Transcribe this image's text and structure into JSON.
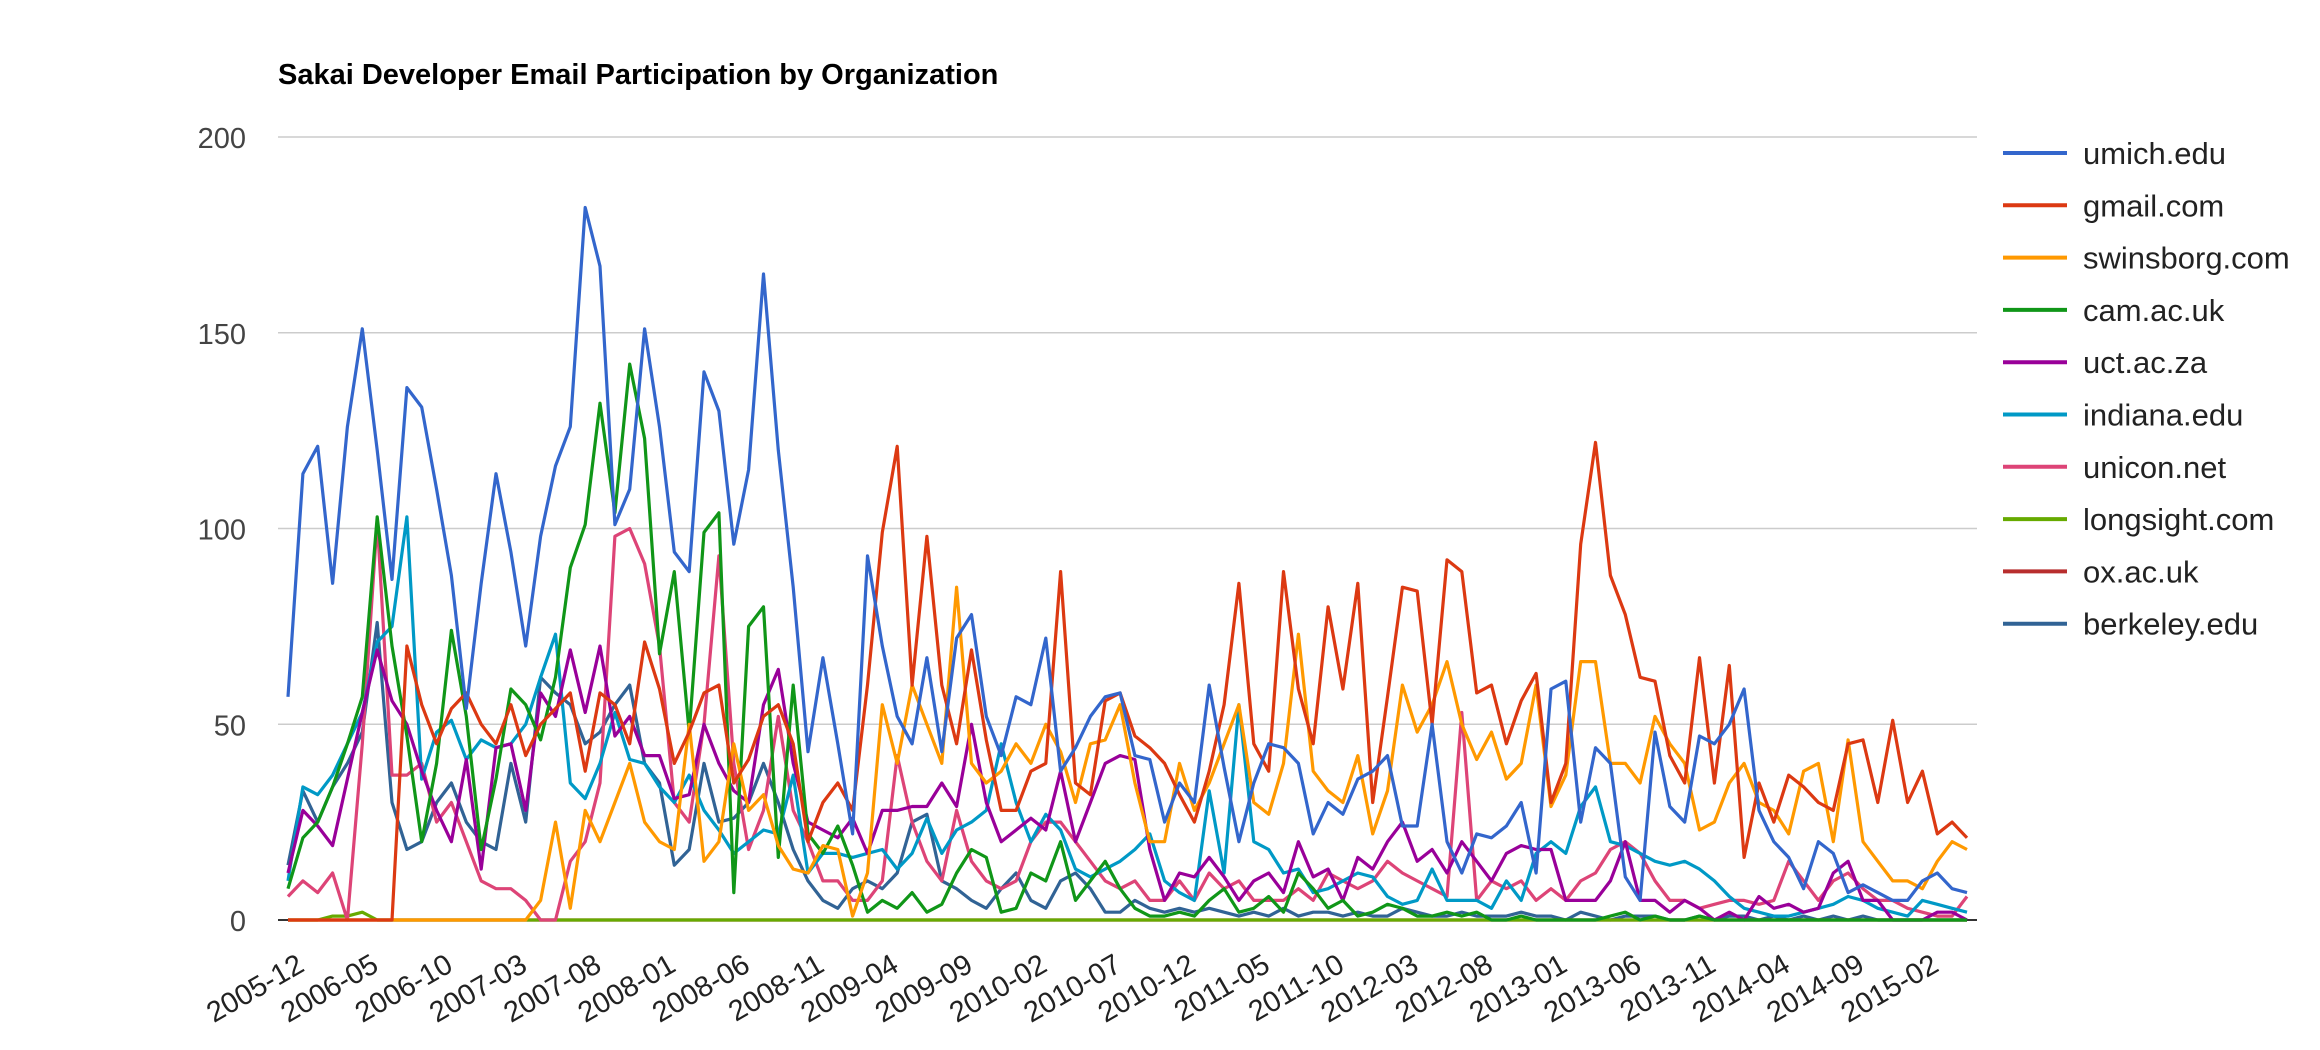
{
  "chart_data": {
    "type": "line",
    "title": "Sakai Developer Email Participation by Organization",
    "xlabel": "",
    "ylabel": "",
    "ylim": [
      0,
      200
    ],
    "yticks": [
      0,
      50,
      100,
      150,
      200
    ],
    "grid": true,
    "legend_position": "right",
    "x_tick_labels": [
      "2005-12",
      "2006-05",
      "2006-10",
      "2007-03",
      "2007-08",
      "2008-01",
      "2008-06",
      "2008-11",
      "2009-04",
      "2009-09",
      "2010-02",
      "2010-07",
      "2010-12",
      "2011-05",
      "2011-10",
      "2012-03",
      "2012-08",
      "2013-01",
      "2013-06",
      "2013-11",
      "2014-04",
      "2014-09",
      "2015-02"
    ],
    "x": [
      "2005-12",
      "2006-01",
      "2006-02",
      "2006-03",
      "2006-04",
      "2006-05",
      "2006-06",
      "2006-07",
      "2006-08",
      "2006-09",
      "2006-10",
      "2006-11",
      "2006-12",
      "2007-01",
      "2007-02",
      "2007-03",
      "2007-04",
      "2007-05",
      "2007-06",
      "2007-07",
      "2007-08",
      "2007-09",
      "2007-10",
      "2007-11",
      "2007-12",
      "2008-01",
      "2008-02",
      "2008-03",
      "2008-04",
      "2008-05",
      "2008-06",
      "2008-07",
      "2008-08",
      "2008-09",
      "2008-10",
      "2008-11",
      "2008-12",
      "2009-01",
      "2009-02",
      "2009-03",
      "2009-04",
      "2009-05",
      "2009-06",
      "2009-07",
      "2009-08",
      "2009-09",
      "2009-10",
      "2009-11",
      "2009-12",
      "2010-01",
      "2010-02",
      "2010-03",
      "2010-04",
      "2010-05",
      "2010-06",
      "2010-07",
      "2010-08",
      "2010-09",
      "2010-10",
      "2010-11",
      "2010-12",
      "2011-01",
      "2011-02",
      "2011-03",
      "2011-04",
      "2011-05",
      "2011-06",
      "2011-07",
      "2011-08",
      "2011-09",
      "2011-10",
      "2011-11",
      "2011-12",
      "2012-01",
      "2012-02",
      "2012-03",
      "2012-04",
      "2012-05",
      "2012-06",
      "2012-07",
      "2012-08",
      "2012-09",
      "2012-10",
      "2012-11",
      "2012-12",
      "2013-01",
      "2013-02",
      "2013-03",
      "2013-04",
      "2013-05",
      "2013-06",
      "2013-07",
      "2013-08",
      "2013-09",
      "2013-10",
      "2013-11",
      "2013-12",
      "2014-01",
      "2014-02",
      "2014-03",
      "2014-04",
      "2014-05",
      "2014-06",
      "2014-07",
      "2014-08",
      "2014-09",
      "2014-10",
      "2014-11",
      "2014-12",
      "2015-01",
      "2015-02",
      "2015-03",
      "2015-04",
      "2015-05"
    ],
    "series": [
      {
        "name": "umich.edu",
        "color": "#3366cc",
        "values": [
          57,
          114,
          121,
          86,
          126,
          151,
          120,
          87,
          136,
          131,
          110,
          88,
          54,
          86,
          114,
          94,
          70,
          98,
          116,
          126,
          182,
          167,
          101,
          110,
          151,
          126,
          94,
          89,
          140,
          130,
          96,
          115,
          165,
          120,
          85,
          43,
          67,
          45,
          22,
          93,
          70,
          52,
          45,
          67,
          43,
          72,
          78,
          52,
          42,
          57,
          55,
          72,
          38,
          44,
          52,
          57,
          58,
          42,
          41,
          25,
          35,
          30,
          60,
          39,
          20,
          35,
          45,
          44,
          40,
          22,
          30,
          27,
          36,
          38,
          42,
          24,
          24,
          50,
          20,
          12,
          22,
          21,
          24,
          30,
          12,
          59,
          61,
          25,
          44,
          40,
          11,
          5,
          48,
          29,
          25,
          47,
          45,
          50,
          59,
          28,
          20,
          16,
          8,
          20,
          17,
          7,
          9,
          7,
          5,
          5,
          10,
          12,
          8,
          7
        ]
      },
      {
        "name": "gmail.com",
        "color": "#dc3912",
        "values": [
          0,
          0,
          0,
          0,
          0,
          0,
          0,
          0,
          70,
          55,
          45,
          54,
          58,
          50,
          45,
          55,
          42,
          50,
          54,
          58,
          38,
          58,
          55,
          45,
          71,
          59,
          40,
          48,
          58,
          60,
          35,
          41,
          52,
          55,
          45,
          20,
          30,
          35,
          28,
          60,
          99,
          121,
          60,
          98,
          60,
          45,
          69,
          46,
          28,
          28,
          38,
          40,
          89,
          35,
          32,
          56,
          58,
          47,
          44,
          40,
          32,
          25,
          38,
          55,
          86,
          45,
          38,
          89,
          59,
          45,
          80,
          59,
          86,
          30,
          57,
          85,
          84,
          50,
          92,
          89,
          58,
          60,
          45,
          56,
          63,
          30,
          40,
          96,
          122,
          88,
          78,
          62,
          61,
          42,
          35,
          67,
          35,
          65,
          16,
          35,
          25,
          37,
          34,
          30,
          28,
          45,
          46,
          30,
          51,
          30,
          38,
          22,
          25,
          21
        ]
      },
      {
        "name": "swinsborg.com",
        "color": "#ff9900",
        "values": [
          0,
          0,
          0,
          0,
          0,
          0,
          0,
          0,
          0,
          0,
          0,
          0,
          0,
          0,
          0,
          0,
          0,
          5,
          25,
          3,
          28,
          20,
          30,
          40,
          25,
          20,
          18,
          50,
          15,
          20,
          45,
          28,
          32,
          19,
          13,
          12,
          19,
          18,
          1,
          12,
          55,
          40,
          60,
          50,
          40,
          85,
          40,
          35,
          38,
          45,
          40,
          50,
          43,
          30,
          45,
          46,
          55,
          35,
          20,
          20,
          40,
          28,
          35,
          45,
          55,
          30,
          27,
          40,
          73,
          38,
          33,
          30,
          42,
          22,
          33,
          60,
          48,
          55,
          66,
          50,
          41,
          48,
          36,
          40,
          60,
          29,
          37,
          66,
          66,
          40,
          40,
          35,
          52,
          45,
          40,
          23,
          25,
          35,
          40,
          30,
          28,
          22,
          38,
          40,
          20,
          46,
          20,
          15,
          10,
          10,
          8,
          15,
          20,
          18
        ]
      },
      {
        "name": "cam.ac.uk",
        "color": "#109618",
        "values": [
          8,
          21,
          25,
          34,
          45,
          57,
          103,
          70,
          47,
          20,
          40,
          74,
          52,
          18,
          36,
          59,
          55,
          46,
          62,
          90,
          101,
          132,
          104,
          142,
          123,
          68,
          89,
          48,
          99,
          104,
          7,
          75,
          80,
          16,
          60,
          22,
          17,
          24,
          14,
          2,
          5,
          3,
          7,
          2,
          4,
          12,
          18,
          16,
          2,
          3,
          12,
          10,
          20,
          5,
          10,
          15,
          8,
          3,
          1,
          1,
          2,
          1,
          5,
          8,
          2,
          3,
          6,
          2,
          12,
          8,
          3,
          5,
          1,
          2,
          4,
          3,
          1,
          1,
          2,
          1,
          2,
          0,
          0,
          1,
          0,
          0,
          0,
          0,
          0,
          1,
          2,
          0,
          1,
          0,
          0,
          1,
          0,
          0,
          0,
          0,
          0,
          0,
          0,
          0,
          0,
          0,
          0,
          0,
          0,
          0,
          0,
          0,
          0,
          0
        ]
      },
      {
        "name": "uct.ac.za",
        "color": "#990099",
        "values": [
          12,
          28,
          24,
          19,
          36,
          53,
          69,
          56,
          50,
          38,
          28,
          20,
          41,
          13,
          44,
          45,
          28,
          58,
          52,
          69,
          53,
          70,
          47,
          52,
          42,
          42,
          31,
          32,
          50,
          40,
          33,
          30,
          55,
          64,
          40,
          25,
          23,
          21,
          26,
          17,
          28,
          28,
          29,
          29,
          35,
          29,
          50,
          30,
          20,
          23,
          26,
          23,
          38,
          20,
          30,
          40,
          42,
          41,
          18,
          5,
          12,
          11,
          16,
          11,
          5,
          10,
          12,
          7,
          20,
          11,
          13,
          5,
          16,
          13,
          20,
          25,
          15,
          18,
          12,
          20,
          15,
          10,
          17,
          19,
          18,
          18,
          5,
          5,
          5,
          10,
          20,
          5,
          5,
          2,
          5,
          3,
          0,
          2,
          0,
          6,
          3,
          4,
          2,
          3,
          12,
          15,
          5,
          5,
          0,
          0,
          0,
          2,
          2,
          0
        ]
      },
      {
        "name": "indiana.edu",
        "color": "#0099c6",
        "values": [
          10,
          34,
          32,
          37,
          45,
          53,
          71,
          75,
          103,
          36,
          48,
          51,
          41,
          46,
          44,
          45,
          50,
          62,
          73,
          35,
          31,
          40,
          53,
          41,
          40,
          34,
          30,
          37,
          28,
          23,
          17,
          20,
          23,
          22,
          37,
          12,
          17,
          17,
          16,
          17,
          18,
          13,
          17,
          26,
          17,
          23,
          25,
          28,
          45,
          30,
          20,
          27,
          23,
          13,
          11,
          13,
          15,
          18,
          22,
          10,
          7,
          5,
          33,
          12,
          55,
          20,
          18,
          12,
          13,
          7,
          8,
          10,
          12,
          11,
          6,
          4,
          5,
          13,
          5,
          5,
          5,
          3,
          10,
          5,
          17,
          20,
          17,
          29,
          34,
          20,
          19,
          17,
          15,
          14,
          15,
          13,
          10,
          6,
          3,
          2,
          1,
          1,
          2,
          3,
          4,
          6,
          5,
          3,
          2,
          1,
          5,
          4,
          3,
          2
        ]
      },
      {
        "name": "unicon.net",
        "color": "#dd4477",
        "values": [
          6,
          10,
          7,
          12,
          0,
          45,
          102,
          37,
          37,
          40,
          25,
          30,
          20,
          10,
          8,
          8,
          5,
          0,
          0,
          15,
          20,
          35,
          98,
          100,
          91,
          70,
          30,
          25,
          50,
          93,
          40,
          18,
          28,
          52,
          28,
          20,
          10,
          10,
          5,
          5,
          10,
          42,
          25,
          15,
          10,
          28,
          15,
          10,
          8,
          10,
          20,
          25,
          25,
          20,
          15,
          10,
          8,
          10,
          5,
          5,
          10,
          5,
          12,
          8,
          10,
          5,
          5,
          5,
          8,
          5,
          12,
          10,
          8,
          10,
          15,
          12,
          10,
          8,
          6,
          53,
          5,
          10,
          8,
          10,
          5,
          8,
          5,
          10,
          12,
          18,
          20,
          17,
          10,
          5,
          5,
          3,
          4,
          5,
          5,
          4,
          5,
          15,
          10,
          5,
          10,
          12,
          8,
          5,
          5,
          3,
          2,
          1,
          1,
          6
        ]
      },
      {
        "name": "longsight.com",
        "color": "#66aa00",
        "values": [
          0,
          0,
          0,
          1,
          1,
          2,
          0,
          0,
          0,
          0,
          0,
          0,
          0,
          0,
          0,
          0,
          0,
          0,
          0,
          0,
          0,
          0,
          0,
          0,
          0,
          0,
          0,
          0,
          0,
          0,
          0,
          0,
          0,
          0,
          0,
          0,
          0,
          0,
          0,
          0,
          0,
          0,
          0,
          0,
          0,
          0,
          0,
          0,
          0,
          0,
          0,
          0,
          0,
          0,
          0,
          0,
          0,
          0,
          0,
          0,
          0,
          0,
          0,
          0,
          0,
          0,
          0,
          0,
          0,
          0,
          0,
          0,
          0,
          0,
          0,
          0,
          0,
          0,
          0,
          0,
          0,
          0,
          0,
          0,
          0,
          0,
          0,
          0,
          0,
          0,
          0,
          0,
          0,
          0,
          0,
          0,
          0,
          0,
          0,
          0,
          0,
          0,
          0,
          0,
          0,
          0,
          0,
          0,
          0,
          0,
          0,
          0,
          0,
          0
        ]
      },
      {
        "name": "ox.ac.uk",
        "color": "#b82e2e",
        "values": [
          0,
          0,
          0,
          0,
          0,
          0,
          0,
          0,
          0,
          0,
          0,
          0,
          0,
          0,
          0,
          0,
          0,
          0,
          0,
          0,
          0,
          0,
          0,
          0,
          0,
          0,
          0,
          0,
          0,
          0,
          0,
          0,
          0,
          0,
          0,
          0,
          0,
          0,
          0,
          0,
          0,
          0,
          0,
          0,
          0,
          0,
          0,
          0,
          0,
          0,
          0,
          0,
          0,
          0,
          0,
          0,
          0,
          0,
          0,
          0,
          0,
          0,
          0,
          0,
          0,
          0,
          0,
          0,
          0,
          0,
          0,
          0,
          0,
          0,
          0,
          0,
          0,
          0,
          0,
          0,
          0,
          0,
          0,
          0,
          0,
          0,
          0,
          0,
          0,
          0,
          0,
          0,
          0,
          0,
          0,
          0,
          0,
          0,
          0,
          0,
          0,
          0,
          0,
          0,
          0,
          0,
          0,
          0,
          0,
          0,
          0,
          0,
          0,
          0
        ]
      },
      {
        "name": "berkeley.edu",
        "color": "#316395",
        "values": [
          14,
          33,
          25,
          34,
          40,
          48,
          76,
          30,
          18,
          20,
          30,
          35,
          25,
          20,
          18,
          40,
          25,
          62,
          58,
          55,
          45,
          48,
          55,
          60,
          40,
          35,
          14,
          18,
          40,
          25,
          26,
          30,
          40,
          30,
          18,
          10,
          5,
          3,
          8,
          10,
          8,
          12,
          25,
          27,
          10,
          8,
          5,
          3,
          8,
          12,
          5,
          3,
          10,
          12,
          8,
          2,
          2,
          5,
          3,
          2,
          3,
          2,
          3,
          2,
          1,
          2,
          1,
          3,
          1,
          2,
          2,
          1,
          2,
          1,
          1,
          3,
          2,
          1,
          1,
          2,
          1,
          1,
          1,
          2,
          1,
          1,
          0,
          2,
          1,
          0,
          1,
          1,
          1,
          0,
          0,
          1,
          0,
          1,
          1,
          0,
          1,
          0,
          1,
          0,
          1,
          0,
          1,
          0,
          0,
          0,
          0,
          0,
          0,
          0
        ]
      }
    ]
  }
}
